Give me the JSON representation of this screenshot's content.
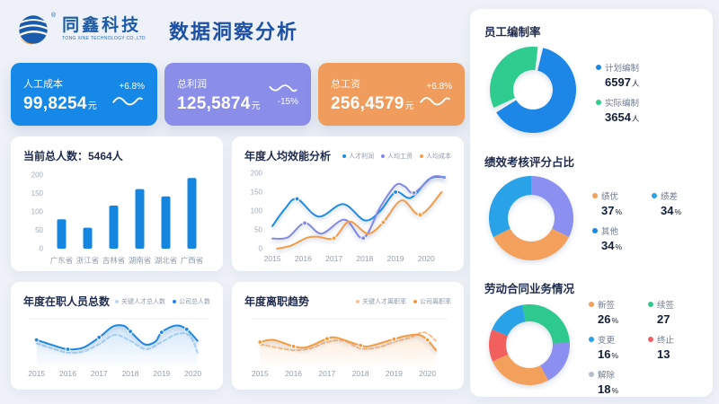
{
  "header": {
    "company_name": "同鑫科技",
    "company_sub": "TONG XINE TECHNOLOGY CO.,LTD",
    "registered_mark": "®",
    "title": "数据洞察分析"
  },
  "kpis": [
    {
      "label": "人工成本",
      "value": "99,8254",
      "unit": "元",
      "delta": "+6.8%",
      "color": "#1689e8",
      "wave_position": "below-delta"
    },
    {
      "label": "总利润",
      "value": "125,5874",
      "unit": "元",
      "delta": "-15%",
      "color": "#8a8ee9",
      "wave_position": "above-delta"
    },
    {
      "label": "总工资",
      "value": "256,4579",
      "unit": "元",
      "delta": "+6.8%",
      "color": "#f09c5c",
      "wave_position": "below-delta"
    }
  ],
  "chart_data": [
    {
      "name": "headcount-by-province",
      "type": "bar",
      "title": "当前总人数：5464人",
      "categories": [
        "广东省",
        "浙江省",
        "吉林省",
        "湖南省",
        "湖北省",
        "广西省"
      ],
      "values": [
        80,
        57,
        117,
        162,
        142,
        192
      ],
      "ylim": [
        0,
        200
      ],
      "yticks": [
        0,
        50,
        100,
        150,
        200
      ],
      "bar_color": "#1586e0"
    },
    {
      "name": "annual-efficiency",
      "type": "line",
      "title": "年度人均效能分析",
      "x_labels": [
        "2015",
        "2016",
        "2017",
        "2018",
        "2019",
        "2020"
      ],
      "ylim": [
        0,
        200
      ],
      "yticks": [
        0,
        50,
        100,
        150,
        200
      ],
      "legend_position": "top-right",
      "series": [
        {
          "name": "人才利润",
          "color": "#1b8de8",
          "x": [
            2015,
            2015.4,
            2015.8,
            2016.5,
            2017.3,
            2018.0,
            2018.5,
            2019.0,
            2019.5,
            2020.1,
            2020.6
          ],
          "y": [
            60,
            105,
            132,
            85,
            118,
            75,
            100,
            150,
            135,
            185,
            190
          ],
          "markers": [
            [
              2015.8,
              132
            ],
            [
              2019.0,
              150
            ]
          ]
        },
        {
          "name": "人均工资",
          "color": "#8287ea",
          "x": [
            2015,
            2015.5,
            2016.05,
            2016.6,
            2017.35,
            2017.95,
            2018.5,
            2019.0,
            2019.3,
            2019.6,
            2020.2,
            2020.6
          ],
          "y": [
            27,
            30,
            68,
            40,
            77,
            28,
            110,
            168,
            165,
            148,
            190,
            188
          ],
          "markers": [
            [
              2016.05,
              68
            ],
            [
              2017.95,
              28
            ],
            [
              2019.6,
              148
            ]
          ]
        },
        {
          "name": "人均成本",
          "color": "#f59b4a",
          "x": [
            2015.15,
            2015.6,
            2016.1,
            2016.45,
            2017.0,
            2017.5,
            2018.1,
            2018.6,
            2019.2,
            2019.8,
            2020.5
          ],
          "y": [
            0,
            8,
            28,
            32,
            28,
            72,
            40,
            70,
            128,
            90,
            150
          ],
          "markers": [
            [
              2017.0,
              28
            ],
            [
              2018.6,
              70
            ],
            [
              2019.8,
              90
            ]
          ]
        }
      ]
    },
    {
      "name": "annual-headcount-trend",
      "type": "line",
      "title": "年度在职人员总数",
      "x_labels": [
        "2015",
        "2016",
        "2017",
        "2018",
        "2019",
        "2020"
      ],
      "ylim": [
        0,
        110
      ],
      "legend_position": "top-right",
      "series": [
        {
          "name": "关键人才总人数",
          "color": "#b9d8f5",
          "dashed": true,
          "x": [
            2015,
            2015.5,
            2016,
            2016.5,
            2017,
            2017.5,
            2018,
            2018.5,
            2019,
            2019.5,
            2019.9,
            2020.15
          ],
          "y": [
            52,
            40,
            30,
            33,
            50,
            72,
            58,
            38,
            55,
            74,
            70,
            30
          ]
        },
        {
          "name": "公司总人数",
          "color": "#1b87e6",
          "area": true,
          "x": [
            2015,
            2015.5,
            2016,
            2016.5,
            2017,
            2017.45,
            2017.8,
            2018,
            2018.45,
            2018.8,
            2019,
            2019.45,
            2019.8,
            2020.15
          ],
          "y": [
            60,
            48,
            38,
            42,
            66,
            92,
            93,
            80,
            50,
            56,
            78,
            94,
            85,
            58
          ],
          "markers": [
            [
              2015,
              60
            ],
            [
              2016,
              38
            ],
            [
              2017,
              66
            ],
            [
              2018,
              80
            ],
            [
              2019,
              78
            ],
            [
              2019.8,
              85
            ]
          ]
        }
      ]
    },
    {
      "name": "annual-turnover-trend",
      "type": "line",
      "title": "年度离职趋势",
      "x_labels": [
        "2015",
        "2016",
        "2017",
        "2018",
        "2019",
        "2020"
      ],
      "ylim": [
        0,
        110
      ],
      "legend_position": "top-right",
      "series": [
        {
          "name": "关键人才离职率",
          "color": "#f6c392",
          "dashed": true,
          "x": [
            2015,
            2015.5,
            2016,
            2016.5,
            2017,
            2017.5,
            2018,
            2018.5,
            2019,
            2019.5,
            2019.9,
            2020.25
          ],
          "y": [
            50,
            42,
            36,
            40,
            55,
            58,
            40,
            42,
            55,
            66,
            78,
            58
          ]
        },
        {
          "name": "公司离职率",
          "color": "#f59a3e",
          "area": true,
          "x": [
            2015,
            2015.4,
            2016,
            2016.4,
            2017,
            2017.3,
            2018,
            2018.3,
            2019,
            2019.4,
            2019.75,
            2020,
            2020.25
          ],
          "y": [
            55,
            60,
            45,
            43,
            63,
            65,
            47,
            46,
            62,
            70,
            72,
            60,
            36
          ],
          "markers": [
            [
              2015,
              55
            ],
            [
              2016,
              45
            ],
            [
              2017,
              63
            ],
            [
              2018,
              47
            ],
            [
              2019,
              62
            ],
            [
              2020,
              60
            ]
          ]
        }
      ]
    },
    {
      "name": "staffing-rate",
      "type": "donut",
      "title": "员工编制率",
      "slices": [
        {
          "label": "计划编制",
          "pct": 64.4,
          "color": "#1b87e6"
        },
        {
          "label": "实际编制",
          "pct": 35.6,
          "color": "#2ecc8e"
        }
      ],
      "legend": [
        {
          "label": "计划编制",
          "value": "6597",
          "suffix": "人",
          "dot": "#1b87e6"
        },
        {
          "label": "实际编制",
          "value": "3654",
          "suffix": "人",
          "dot": "#2ecc8e"
        }
      ]
    },
    {
      "name": "performance-score-share",
      "type": "donut",
      "title": "绩效考核评分占比",
      "slices": [
        {
          "label": "其他",
          "pct": 34,
          "color": "#8b8ff0"
        },
        {
          "label": "绩优",
          "pct": 37,
          "color": "#f2a05c"
        },
        {
          "label": "绩差",
          "pct": 34,
          "color": "#29a2e8"
        }
      ],
      "legend": [
        {
          "label": "绩优",
          "value": "37",
          "suffix": "%",
          "dot": "#f2a05c"
        },
        {
          "label": "绩差",
          "value": "34",
          "suffix": "%",
          "dot": "#29a2e8"
        },
        {
          "label": "其他",
          "value": "34",
          "suffix": "%",
          "dot": "#1b87e6"
        }
      ]
    },
    {
      "name": "labor-contract-business",
      "type": "donut",
      "title": "劳动合同业务情况",
      "slices": [
        {
          "label": "续签",
          "pct": 27,
          "color": "#2fc98e"
        },
        {
          "label": "解除",
          "pct": 18,
          "color": "#8b8ff0"
        },
        {
          "label": "新签",
          "pct": 26,
          "color": "#f2a05c"
        },
        {
          "label": "终止",
          "pct": 13,
          "color": "#f25f5f"
        },
        {
          "label": "变更",
          "pct": 16,
          "color": "#29a2e8"
        }
      ],
      "legend": [
        {
          "label": "新签",
          "value": "26",
          "suffix": "%",
          "dot": "#f2a05c"
        },
        {
          "label": "续签",
          "value": "27",
          "suffix": "",
          "dot": "#2fc98e"
        },
        {
          "label": "变更",
          "value": "16",
          "suffix": "%",
          "dot": "#29a2e8"
        },
        {
          "label": "终止",
          "value": "13",
          "suffix": "",
          "dot": "#f25f5f"
        },
        {
          "label": "解除",
          "value": "18",
          "suffix": "%",
          "dot": "#b9bfca"
        }
      ]
    }
  ]
}
